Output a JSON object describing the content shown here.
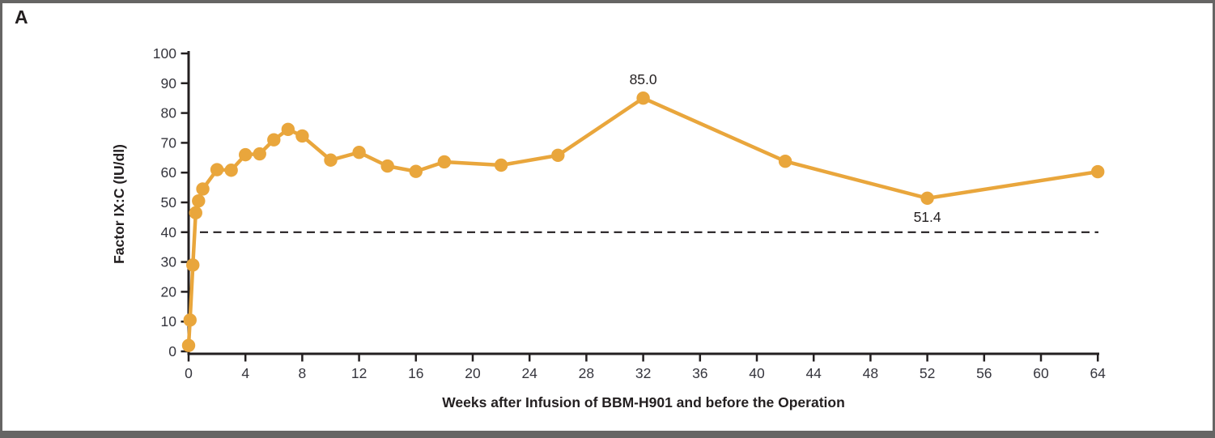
{
  "panel_label": "A",
  "colors": {
    "series": "#E9A63C",
    "axis": "#231f20",
    "tick_text": "#35353d",
    "annotation_text": "#231f20",
    "frame": "#666564",
    "background": "#ffffff"
  },
  "chart_data": {
    "type": "line",
    "title": "",
    "xlabel": "Weeks after Infusion of BBM-H901 and before the Operation",
    "ylabel": "Factor IX:C (IU/dl)",
    "x": [
      0,
      0.1,
      0.3,
      0.5,
      0.7,
      1,
      2,
      3,
      4,
      5,
      6,
      7,
      8,
      10,
      12,
      14,
      16,
      18,
      22,
      26,
      32,
      42,
      52,
      64
    ],
    "y": [
      2,
      10.5,
      29,
      46.5,
      50.5,
      54.5,
      61,
      60.8,
      66,
      66.3,
      71,
      74.5,
      72.3,
      64.2,
      66.8,
      62.2,
      60.4,
      63.6,
      62.5,
      65.8,
      85.0,
      63.8,
      51.4,
      60.3
    ],
    "xlim": [
      0,
      64
    ],
    "ylim": [
      0,
      100
    ],
    "x_ticks": [
      0,
      4,
      8,
      12,
      16,
      20,
      24,
      28,
      32,
      36,
      40,
      44,
      48,
      52,
      56,
      60,
      64
    ],
    "y_ticks": [
      0,
      10,
      20,
      30,
      40,
      50,
      60,
      70,
      80,
      90,
      100
    ],
    "grid": false,
    "legend": null,
    "marker": "circle",
    "threshold_line": {
      "y": 40,
      "style": "dashed",
      "color": "#231f20"
    },
    "annotations": [
      {
        "text": "85.0",
        "x": 32,
        "y": 85.0,
        "position": "above"
      },
      {
        "text": "51.4",
        "x": 52,
        "y": 51.4,
        "position": "below"
      }
    ]
  }
}
